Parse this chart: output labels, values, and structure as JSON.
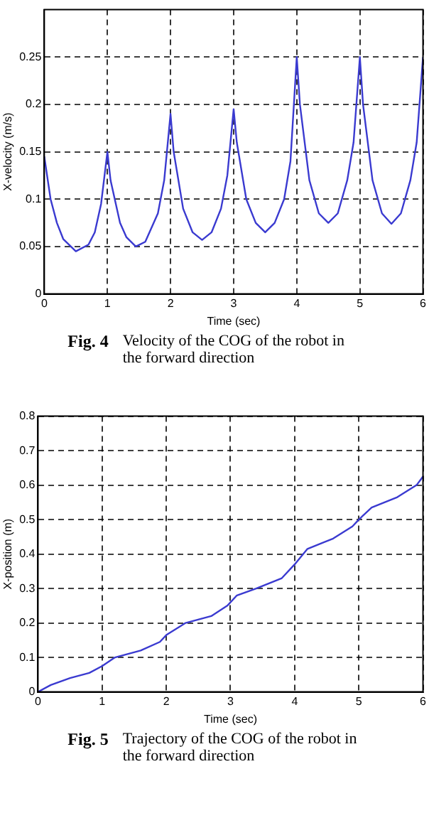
{
  "chart_data": [
    {
      "type": "line",
      "xlabel": "Time (sec)",
      "ylabel": "X-velocity (m/s)",
      "annotations": [
        "Fig. 4",
        "Velocity of the COG of the robot in the forward direction"
      ],
      "x": [
        0,
        0.1,
        0.2,
        0.3,
        0.5,
        0.7,
        0.8,
        0.9,
        1.0,
        1.05,
        1.2,
        1.3,
        1.45,
        1.6,
        1.8,
        1.9,
        2.0,
        2.05,
        2.2,
        2.35,
        2.5,
        2.65,
        2.8,
        2.9,
        3.0,
        3.05,
        3.2,
        3.35,
        3.5,
        3.65,
        3.8,
        3.9,
        4.0,
        4.05,
        4.2,
        4.35,
        4.5,
        4.65,
        4.8,
        4.9,
        5.0,
        5.05,
        5.2,
        5.35,
        5.5,
        5.65,
        5.8,
        5.9,
        6.0
      ],
      "series": [
        {
          "color": "#3a3ad0",
          "values": [
            0.145,
            0.1,
            0.075,
            0.058,
            0.045,
            0.052,
            0.065,
            0.095,
            0.15,
            0.12,
            0.075,
            0.06,
            0.05,
            0.055,
            0.085,
            0.12,
            0.19,
            0.15,
            0.09,
            0.065,
            0.057,
            0.065,
            0.09,
            0.125,
            0.195,
            0.16,
            0.1,
            0.075,
            0.065,
            0.075,
            0.1,
            0.14,
            0.25,
            0.2,
            0.12,
            0.085,
            0.075,
            0.085,
            0.12,
            0.16,
            0.25,
            0.2,
            0.12,
            0.085,
            0.074,
            0.085,
            0.12,
            0.16,
            0.25
          ]
        }
      ],
      "xlim": [
        0,
        6
      ],
      "xticks": [
        0,
        1,
        2,
        3,
        4,
        5,
        6
      ],
      "ylim": [
        0,
        0.3
      ],
      "yticks": [
        0,
        0.05,
        0.1,
        0.15,
        0.2,
        0.25
      ],
      "grid": true,
      "line_style": "solid",
      "marker": "none"
    },
    {
      "type": "line",
      "xlabel": "Time (sec)",
      "ylabel": "X-position (m)",
      "annotations": [
        "Fig. 5",
        "Trajectory of the COG of the robot in the forward direction"
      ],
      "x": [
        0,
        0.2,
        0.5,
        0.8,
        1.0,
        1.2,
        1.6,
        1.9,
        2.0,
        2.3,
        2.7,
        2.95,
        3.1,
        3.4,
        3.8,
        4.0,
        4.2,
        4.6,
        4.9,
        5.0,
        5.2,
        5.6,
        5.9,
        6.0
      ],
      "series": [
        {
          "color": "#3a3ad0",
          "values": [
            0,
            0.02,
            0.04,
            0.055,
            0.075,
            0.1,
            0.12,
            0.145,
            0.165,
            0.2,
            0.22,
            0.25,
            0.28,
            0.3,
            0.33,
            0.37,
            0.415,
            0.445,
            0.48,
            0.5,
            0.535,
            0.565,
            0.6,
            0.625
          ]
        }
      ],
      "xlim": [
        0,
        6
      ],
      "xticks": [
        0,
        1,
        2,
        3,
        4,
        5,
        6
      ],
      "ylim": [
        0,
        0.8
      ],
      "yticks": [
        0,
        0.1,
        0.2,
        0.3,
        0.4,
        0.5,
        0.6,
        0.7,
        0.8
      ],
      "grid": true,
      "line_style": "solid",
      "marker": "none"
    }
  ]
}
